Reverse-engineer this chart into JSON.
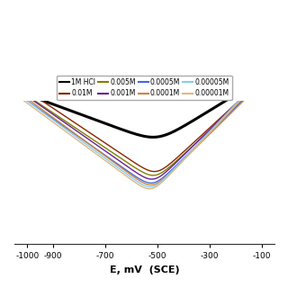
{
  "xlabel": "E, mV  (SCE)",
  "xlim": [
    -1050,
    -50
  ],
  "xticks": [
    -1000,
    -900,
    -700,
    -500,
    -300,
    -100
  ],
  "series": [
    {
      "label": "1M HCl",
      "color": "#000000",
      "lw": 2.2,
      "Ecorr": -500,
      "icorr": -3.2,
      "ba": 120,
      "bc": 200
    },
    {
      "label": "0.01M",
      "color": "#8B2500",
      "lw": 1.0,
      "Ecorr": -505,
      "icorr": -5.0,
      "ba": 80,
      "bc": 110
    },
    {
      "label": "0.005M",
      "color": "#808000",
      "lw": 1.0,
      "Ecorr": -510,
      "icorr": -5.2,
      "ba": 80,
      "bc": 110
    },
    {
      "label": "0.001M",
      "color": "#6B238E",
      "lw": 1.0,
      "Ecorr": -515,
      "icorr": -5.4,
      "ba": 75,
      "bc": 105
    },
    {
      "label": "0.0005M",
      "color": "#4169E1",
      "lw": 1.0,
      "Ecorr": -518,
      "icorr": -5.6,
      "ba": 75,
      "bc": 105
    },
    {
      "label": "0.0001M",
      "color": "#CD853F",
      "lw": 1.0,
      "Ecorr": -520,
      "icorr": -5.7,
      "ba": 75,
      "bc": 100
    },
    {
      "label": "0.00005M",
      "color": "#87CEEB",
      "lw": 1.0,
      "Ecorr": -522,
      "icorr": -5.8,
      "ba": 70,
      "bc": 100
    },
    {
      "label": "0.00001M",
      "color": "#DEB887",
      "lw": 1.0,
      "Ecorr": -524,
      "icorr": -5.9,
      "ba": 70,
      "bc": 100
    }
  ],
  "legend_fontsize": 5.5,
  "tick_fontsize": 6.5,
  "xlabel_fontsize": 8.0,
  "background_color": "#ffffff"
}
